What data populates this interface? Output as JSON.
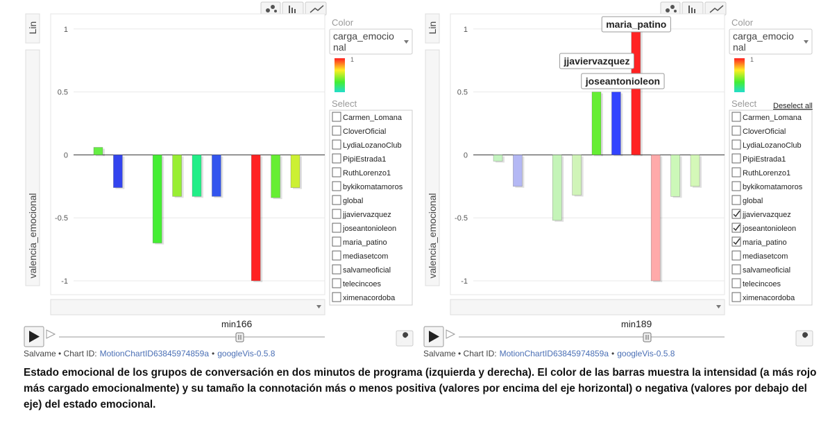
{
  "chart_data": [
    {
      "type": "bar",
      "x_label": "Lin",
      "y_label": "valencia_emocional",
      "categories": [
        null,
        null,
        null,
        null,
        null,
        null,
        null,
        null,
        null,
        null,
        null
      ],
      "values": [
        0.06,
        -0.26,
        null,
        -0.7,
        -0.33,
        -0.33,
        -0.33,
        null,
        -1.0,
        -0.34,
        -0.26
      ],
      "colors": [
        "#66ee44",
        "#3344ee",
        null,
        "#44ee33",
        "#99ee33",
        "#22ee88",
        "#3355ee",
        null,
        "#ff2222",
        "#66ee33",
        "#ccf033"
      ],
      "ylim": [
        -1.11,
        1.12
      ],
      "yticks": [
        -1,
        -0.5,
        0,
        0.5,
        1
      ],
      "grid": true
    },
    {
      "type": "bar",
      "x_label": "Lin",
      "y_label": "valencia_emocional",
      "categories": [
        null,
        null,
        null,
        null,
        null,
        "jjaviervazquez",
        "joseantonioleon",
        "maria_patino",
        null,
        null,
        null
      ],
      "values": [
        -0.05,
        -0.25,
        null,
        -0.52,
        -0.32,
        0.5,
        0.5,
        1.0,
        -1.0,
        -0.33,
        -0.25
      ],
      "colors": [
        "#c4f4c0",
        "#b4b8f4",
        null,
        "#c4f4b8",
        "#d0f4b8",
        "#66ee33",
        "#3344ff",
        "#ff2222",
        "#ffaaaa",
        "#ccf8b8",
        "#d4f8b8"
      ],
      "ylim": [
        -1.11,
        1.12
      ],
      "yticks": [
        -1,
        -0.5,
        0,
        0.5,
        1
      ],
      "grid": true
    }
  ],
  "panels": [
    {
      "color_label": "Color",
      "color_var": "carga_emocional",
      "legend_max": 1,
      "select_label": "Select",
      "items": [
        "Carmen_Lomana",
        "CloverOficial",
        "LydiaLozanoClub",
        "PipiEstrada1",
        "RuthLorenzo1",
        "bykikomatamoros",
        "global",
        "jjaviervazquez",
        "joseantonioleon",
        "maria_patino",
        "mediasetcom",
        "salvameoficial",
        "telecincoes",
        "ximenacordoba"
      ],
      "checked": [
        false,
        false,
        false,
        false,
        false,
        false,
        false,
        false,
        false,
        false,
        false,
        false,
        false,
        false
      ],
      "time_prefix": "min",
      "time": 166
    },
    {
      "color_label": "Color",
      "color_var": "carga_emocional",
      "legend_max": 1,
      "select_label": "Select",
      "deselect": "Deselect all",
      "items": [
        "Carmen_Lomana",
        "CloverOficial",
        "LydiaLozanoClub",
        "PipiEstrada1",
        "RuthLorenzo1",
        "bykikomatamoros",
        "global",
        "jjaviervazquez",
        "joseantonioleon",
        "maria_patino",
        "mediasetcom",
        "salvameoficial",
        "telecincoes",
        "ximenacordoba"
      ],
      "checked": [
        false,
        false,
        false,
        false,
        false,
        false,
        false,
        true,
        true,
        true,
        false,
        false,
        false,
        false
      ],
      "time_prefix": "min",
      "time": 189
    }
  ],
  "footer": [
    "Salvame • Chart ID:",
    "MotionChartID63845974859a",
    "•",
    "googleVis-0.5.8"
  ],
  "caption": "Estado emocional de los grupos de conversación en dos minutos de programa (izquierda y derecha). El color de las barras muestra la intensidad (a más rojo más cargado emocionalmente) y su tamaño la connotación más o menos positiva (valores por encima del eje horizontal) o negativa (valores por debajo del eje) del estado emocional."
}
